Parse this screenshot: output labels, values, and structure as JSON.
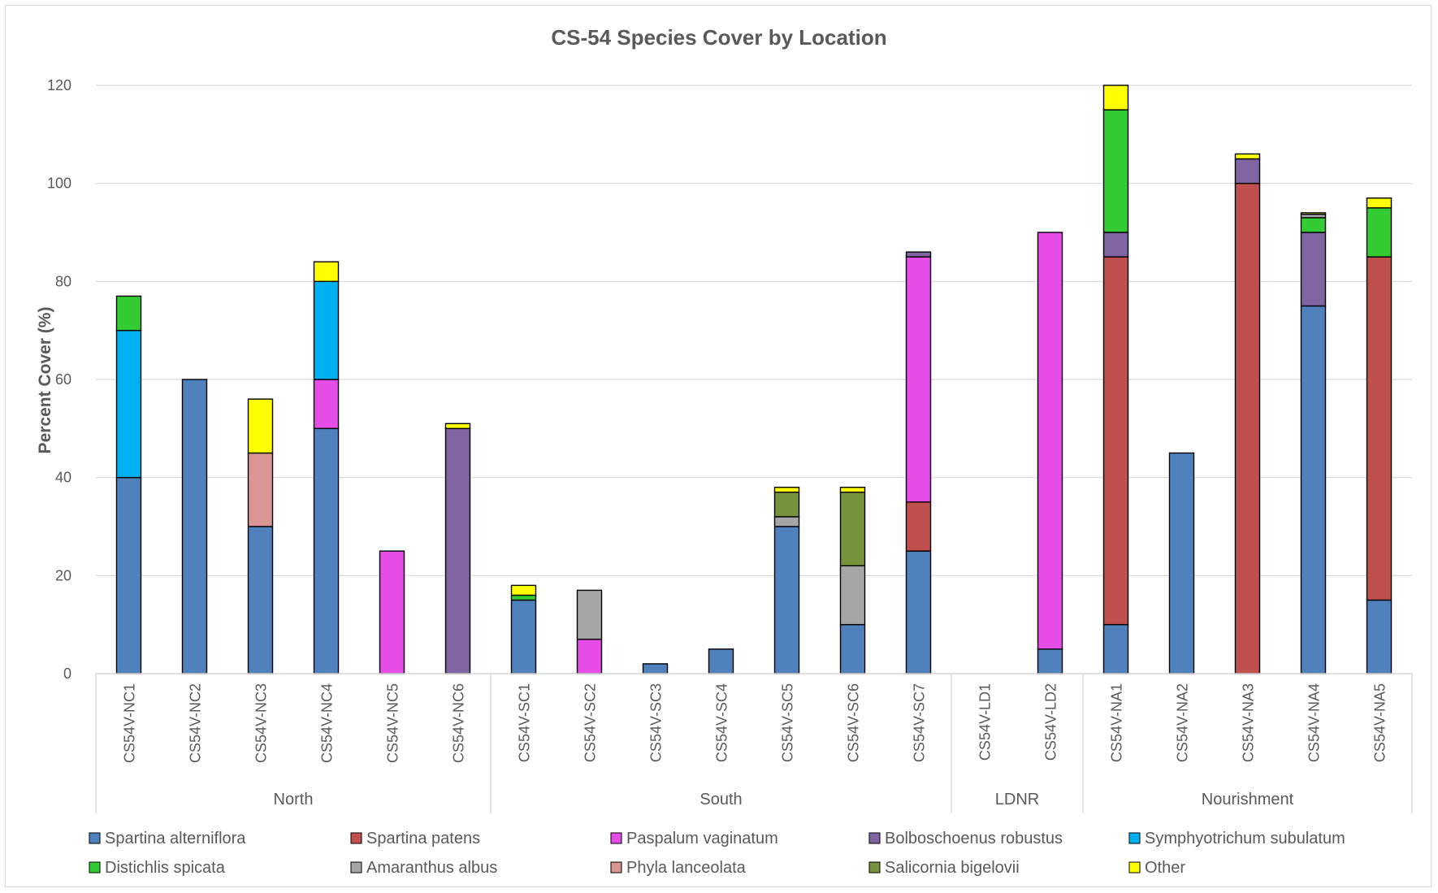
{
  "chart_data": {
    "type": "bar",
    "stacked": true,
    "title": "CS-54 Species Cover by Location",
    "xlabel": "",
    "ylabel": "Percent Cover (%)",
    "ylim": [
      0,
      120
    ],
    "yticks": [
      0,
      20,
      40,
      60,
      80,
      100,
      120
    ],
    "grid": true,
    "legend_position": "bottom",
    "categories": [
      "CS54V-NC1",
      "CS54V-NC2",
      "CS54V-NC3",
      "CS54V-NC4",
      "CS54V-NC5",
      "CS54V-NC6",
      "CS54V-SC1",
      "CS54V-SC2",
      "CS54V-SC3",
      "CS54V-SC4",
      "CS54V-SC5",
      "CS54V-SC6",
      "CS54V-SC7",
      "CS54V-LD1",
      "CS54V-LD2",
      "CS54V-NA1",
      "CS54V-NA2",
      "CS54V-NA3",
      "CS54V-NA4",
      "CS54V-NA5"
    ],
    "groups": [
      {
        "name": "North",
        "count": 6
      },
      {
        "name": "South",
        "count": 7
      },
      {
        "name": "LDNR",
        "count": 2
      },
      {
        "name": "Nourishment",
        "count": 5
      }
    ],
    "series": [
      {
        "name": "Spartina alterniflora",
        "color": "#4f81bd",
        "values": [
          40,
          60,
          30,
          50,
          0,
          0,
          15,
          0,
          2,
          5,
          30,
          10,
          25,
          0,
          5,
          10,
          45,
          0,
          75,
          15
        ]
      },
      {
        "name": "Spartina patens",
        "color": "#c0504d",
        "values": [
          0,
          0,
          0,
          0,
          0,
          0,
          0,
          0,
          0,
          0,
          0,
          0,
          10,
          0,
          0,
          75,
          0,
          100,
          0,
          70
        ]
      },
      {
        "name": "Paspalum vaginatum",
        "color": "#e64ce6",
        "values": [
          0,
          0,
          0,
          10,
          25,
          0,
          0,
          7,
          0,
          0,
          0,
          0,
          50,
          0,
          85,
          0,
          0,
          0,
          0,
          0
        ]
      },
      {
        "name": "Bolboschoenus robustus",
        "color": "#8064a2",
        "values": [
          0,
          0,
          0,
          0,
          0,
          50,
          0,
          0,
          0,
          0,
          0,
          0,
          1,
          0,
          0,
          5,
          0,
          5,
          15,
          0
        ]
      },
      {
        "name": "Symphyotrichum subulatum",
        "color": "#00b0f0",
        "values": [
          30,
          0,
          0,
          20,
          0,
          0,
          0,
          0,
          0,
          0,
          0,
          0,
          0,
          0,
          0,
          0,
          0,
          0,
          0,
          0
        ]
      },
      {
        "name": "Distichlis spicata",
        "color": "#33cc33",
        "values": [
          7,
          0,
          0,
          0,
          0,
          0,
          1,
          0,
          0,
          0,
          0,
          0,
          0,
          0,
          0,
          25,
          0,
          0,
          3,
          10
        ]
      },
      {
        "name": "Amaranthus albus",
        "color": "#a6a6a6",
        "values": [
          0,
          0,
          0,
          0,
          0,
          0,
          0,
          10,
          0,
          0,
          2,
          12,
          0,
          0,
          0,
          0,
          0,
          0,
          0.7,
          0
        ]
      },
      {
        "name": "Phyla lanceolata",
        "color": "#d99694",
        "values": [
          0,
          0,
          15,
          0,
          0,
          0,
          0,
          0,
          0,
          0,
          0,
          0,
          0,
          0,
          0,
          0,
          0,
          0,
          0,
          0
        ]
      },
      {
        "name": "Salicornia bigelovii",
        "color": "#77933c",
        "values": [
          0,
          0,
          0,
          0,
          0,
          0,
          0,
          0,
          0,
          0,
          5,
          15,
          0,
          0,
          0,
          0,
          0,
          0,
          0,
          0
        ]
      },
      {
        "name": "Other",
        "color": "#ffff00",
        "values": [
          0,
          0,
          11,
          4,
          0,
          1,
          2,
          0,
          0,
          0,
          1,
          1,
          0,
          0,
          0,
          5,
          0,
          1,
          0.3,
          2
        ]
      }
    ]
  }
}
